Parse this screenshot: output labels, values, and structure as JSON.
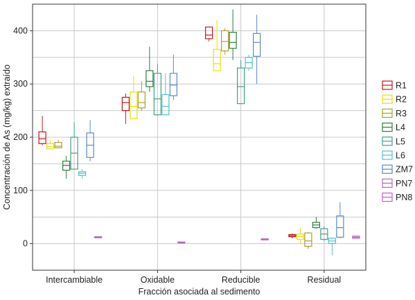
{
  "chart_data": {
    "type": "box",
    "xlabel": "Fracción asociada al sedimento",
    "ylabel": "Concentración de As (mg/kg) extraído",
    "ylim": [
      -50,
      450
    ],
    "yticks": [
      0,
      100,
      200,
      300,
      400
    ],
    "grid": true,
    "legend_position": "right",
    "categories": [
      "Intercambiable",
      "Oxidable",
      "Reducible",
      "Residual"
    ],
    "series": [
      {
        "name": "R1",
        "color": "#c0161c",
        "boxes": [
          {
            "min": 185,
            "q1": 188,
            "median": 197,
            "q3": 210,
            "max": 240
          },
          {
            "min": 225,
            "q1": 250,
            "median": 265,
            "q3": 275,
            "max": 282
          },
          {
            "min": 380,
            "q1": 385,
            "median": 392,
            "q3": 407,
            "max": 407
          },
          {
            "min": 10,
            "q1": 13,
            "median": 15,
            "q3": 17,
            "max": 19
          }
        ]
      },
      {
        "name": "R2",
        "color": "#e8e000",
        "boxes": [
          {
            "min": 178,
            "q1": 178,
            "median": 182,
            "q3": 188,
            "max": 195
          },
          {
            "min": 235,
            "q1": 235,
            "median": 258,
            "q3": 285,
            "max": 315
          },
          {
            "min": 325,
            "q1": 325,
            "median": 338,
            "q3": 365,
            "max": 420
          },
          {
            "min": 0,
            "q1": 8,
            "median": 13,
            "q3": 18,
            "max": 30
          }
        ]
      },
      {
        "name": "R3",
        "color": "#a8a032",
        "boxes": [
          {
            "min": 180,
            "q1": 180,
            "median": 183,
            "q3": 190,
            "max": 195
          },
          {
            "min": 250,
            "q1": 255,
            "median": 265,
            "q3": 285,
            "max": 305
          },
          {
            "min": 355,
            "q1": 362,
            "median": 380,
            "q3": 400,
            "max": 405
          },
          {
            "min": -10,
            "q1": -5,
            "median": 5,
            "q3": 20,
            "max": 22
          }
        ]
      },
      {
        "name": "L4",
        "color": "#2e7d3a",
        "boxes": [
          {
            "min": 122,
            "q1": 138,
            "median": 147,
            "q3": 155,
            "max": 165
          },
          {
            "min": 285,
            "q1": 295,
            "median": 305,
            "q3": 325,
            "max": 370
          },
          {
            "min": 345,
            "q1": 367,
            "median": 378,
            "q3": 397,
            "max": 440
          },
          {
            "min": 28,
            "q1": 30,
            "median": 35,
            "q3": 40,
            "max": 50
          }
        ]
      },
      {
        "name": "L5",
        "color": "#3fa08a",
        "boxes": [
          {
            "min": 140,
            "q1": 140,
            "median": 170,
            "q3": 200,
            "max": 228
          },
          {
            "min": 242,
            "q1": 242,
            "median": 272,
            "q3": 320,
            "max": 338
          },
          {
            "min": 263,
            "q1": 263,
            "median": 295,
            "q3": 330,
            "max": 345
          },
          {
            "min": 5,
            "q1": 8,
            "median": 18,
            "q3": 28,
            "max": 32
          }
        ]
      },
      {
        "name": "L6",
        "color": "#4fc3c8",
        "boxes": [
          {
            "min": 122,
            "q1": 128,
            "median": 132,
            "q3": 135,
            "max": 140
          },
          {
            "min": 242,
            "q1": 242,
            "median": 258,
            "q3": 280,
            "max": 320
          },
          {
            "min": 325,
            "q1": 330,
            "median": 340,
            "q3": 350,
            "max": 355
          },
          {
            "min": -22,
            "q1": 0,
            "median": 5,
            "q3": 10,
            "max": 12
          }
        ]
      },
      {
        "name": "ZM7",
        "color": "#5b8ac4",
        "boxes": [
          {
            "min": 155,
            "q1": 162,
            "median": 185,
            "q3": 208,
            "max": 232
          },
          {
            "min": 270,
            "q1": 278,
            "median": 298,
            "q3": 320,
            "max": 355
          },
          {
            "min": 300,
            "q1": 352,
            "median": 378,
            "q3": 395,
            "max": 430
          },
          {
            "min": 10,
            "q1": 12,
            "median": 30,
            "q3": 52,
            "max": 78
          }
        ]
      },
      {
        "name": "PN7",
        "color": "#b06ab8",
        "boxes": [
          {
            "min": 11,
            "q1": 11,
            "median": 12,
            "q3": 13,
            "max": 13
          },
          {
            "min": 1,
            "q1": 1,
            "median": 2,
            "q3": 3,
            "max": 3
          },
          {
            "min": 7,
            "q1": 7,
            "median": 8,
            "q3": 9,
            "max": 9
          },
          null
        ]
      },
      {
        "name": "PN8",
        "color": "#c060c0",
        "boxes": [
          null,
          null,
          null,
          {
            "min": 9,
            "q1": 10,
            "median": 12,
            "q3": 14,
            "max": 15
          }
        ]
      }
    ]
  }
}
